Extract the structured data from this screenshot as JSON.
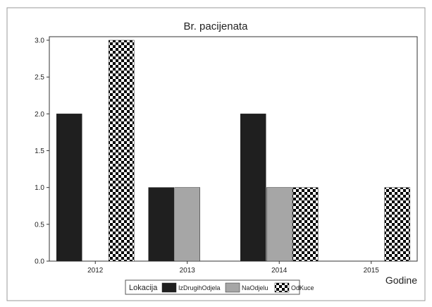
{
  "chart_data": {
    "type": "bar",
    "title": "Br. pacijenata",
    "xlabel": "Godine",
    "ylabel": "",
    "categories": [
      "2012",
      "2013",
      "2014",
      "2015"
    ],
    "series": [
      {
        "name": "IzDrugihOdjela",
        "values": [
          2.0,
          1.0,
          2.0,
          0
        ],
        "color": "#1f1f1f",
        "pattern": "solid"
      },
      {
        "name": "NaOdjelu",
        "values": [
          0,
          1.0,
          1.0,
          0
        ],
        "color": "#a6a6a6",
        "pattern": "solid"
      },
      {
        "name": "OdKuce",
        "values": [
          3.0,
          0,
          1.0,
          1.0
        ],
        "color": "#000000",
        "pattern": "checker"
      }
    ],
    "ylim": [
      0,
      3.0
    ],
    "yticks": [
      "0.0",
      "0.5",
      "1.0",
      "1.5",
      "2.0",
      "2.5",
      "3.0"
    ],
    "grid": false,
    "legend": {
      "title": "Lokacija",
      "placement": "bottom-center"
    }
  }
}
